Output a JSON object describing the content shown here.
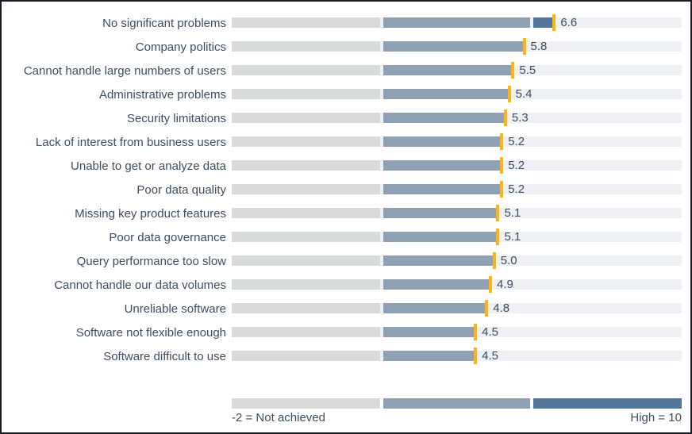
{
  "chart_data": {
    "type": "bar",
    "title": "",
    "orientation": "horizontal",
    "categories": [
      "No significant problems",
      "Company politics",
      "Cannot handle large numbers of users",
      "Administrative problems",
      "Security limitations",
      "Lack of interest from business users",
      "Unable to get or analyze data",
      "Poor data quality",
      "Missing key product features",
      "Poor data governance",
      "Query performance too slow",
      "Cannot handle our data volumes",
      "Unreliable software",
      "Software not flexible enough",
      "Software difficult to use"
    ],
    "values": [
      6.6,
      5.8,
      5.5,
      5.4,
      5.3,
      5.2,
      5.2,
      5.2,
      5.1,
      5.1,
      5.0,
      4.9,
      4.8,
      4.5,
      4.5
    ],
    "xlim": [
      -2,
      10
    ],
    "band_boundaries": [
      2,
      6
    ],
    "grid": false,
    "legend": {
      "position": "bottom",
      "left_label": "-2 = Not achieved",
      "right_label": "High = 10"
    },
    "colors": {
      "track": "#eef0f3",
      "band_low": "#d8dadb",
      "band_mid": "#8fa1b2",
      "band_high": "#54769b",
      "marker": "#fcb514",
      "text": "#3d4d5f",
      "border": "#191b22"
    }
  }
}
